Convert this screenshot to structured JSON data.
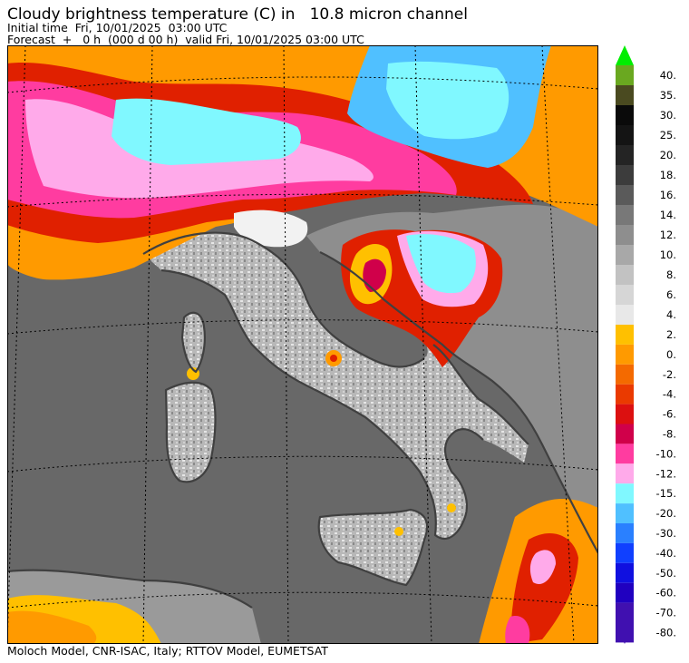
{
  "header": {
    "title": "Cloudy brightness temperature (C) in   10.8 micron channel",
    "initial_time": "Initial time  Fri, 10/01/2025  03:00 UTC",
    "forecast": "Forecast  +   0 h  (000 d 00 h)  valid Fri, 10/01/2025 03:00 UTC"
  },
  "footer": {
    "credit": "Moloch Model, CNR-ISAC, Italy; RTTOV Model, EUMETSAT"
  },
  "legend": {
    "upper_bins": [
      {
        "label": "40.",
        "color": "#6aa820"
      },
      {
        "label": "35.",
        "color": "#4a4a20"
      },
      {
        "label": "30.",
        "color": "#0a0a0a"
      },
      {
        "label": "25.",
        "color": "#141414"
      },
      {
        "label": "20.",
        "color": "#242424"
      },
      {
        "label": "18.",
        "color": "#3c3c3c"
      },
      {
        "label": "16.",
        "color": "#5a5a5a"
      },
      {
        "label": "14.",
        "color": "#787878"
      },
      {
        "label": "12.",
        "color": "#8e8e8e"
      },
      {
        "label": "10.",
        "color": "#a8a8a8"
      },
      {
        "label": "8.",
        "color": "#c2c2c2"
      },
      {
        "label": "6.",
        "color": "#d6d6d6"
      },
      {
        "label": "4.",
        "color": "#e8e8e8"
      }
    ],
    "lower_bins": [
      {
        "label": "2.",
        "color": "#ffc000"
      },
      {
        "label": "0.",
        "color": "#ff9a00"
      },
      {
        "label": "-2.",
        "color": "#f46a00"
      },
      {
        "label": "-4.",
        "color": "#ea3a00"
      },
      {
        "label": "-6.",
        "color": "#dc1010"
      },
      {
        "label": "-8.",
        "color": "#d0004a"
      },
      {
        "label": "-10.",
        "color": "#ff3ca0"
      },
      {
        "label": "-12.",
        "color": "#ffaaea"
      },
      {
        "label": "-15.",
        "color": "#80f8ff"
      },
      {
        "label": "-20.",
        "color": "#50c0ff"
      },
      {
        "label": "-30.",
        "color": "#2a80ff"
      },
      {
        "label": "-40.",
        "color": "#1040ff"
      },
      {
        "label": "-50.",
        "color": "#1010e0"
      },
      {
        "label": "-60.",
        "color": "#2000c0"
      },
      {
        "label": "-70.",
        "color": "#4010b0"
      },
      {
        "label": "-80.",
        "color": "#4010b0"
      }
    ],
    "top_arrow_color": "#00ee00",
    "bottom_arrow_color": "#4010b0"
  },
  "map": {
    "sea_color": "#686868",
    "coast_color": "#404040",
    "cloud_colors": {
      "orange": "#ff9a00",
      "yellow": "#ffc000",
      "red": "#e02000",
      "magenta": "#ff3ca0",
      "pink": "#ffaaea",
      "cyan": "#80f8ff",
      "blue": "#50c0ff",
      "white": "#f2f2f2",
      "light_gray": "#c8c8c8",
      "mid_gray": "#9a9a9a"
    }
  }
}
